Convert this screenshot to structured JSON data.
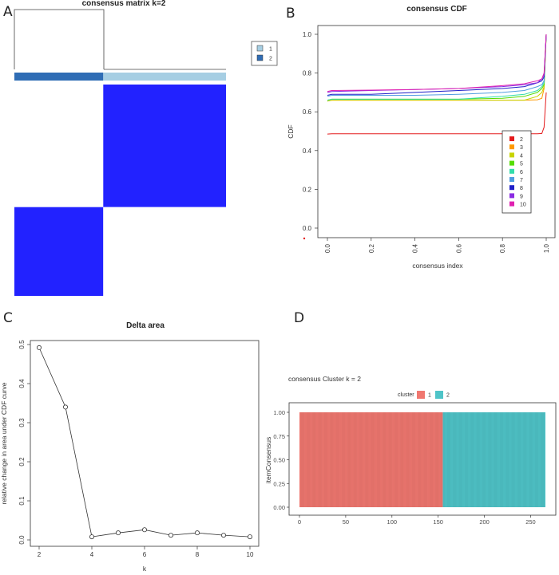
{
  "panels": {
    "a": "A",
    "b": "B",
    "c": "C",
    "d": "D"
  },
  "chart_data": [
    {
      "type": "heatmap",
      "title": "consensus matrix k=2",
      "legend": [
        "1",
        "2"
      ],
      "legend_colors": [
        "#a6cee3",
        "#2f6db5"
      ],
      "matrix_colors": [
        "#ffffff",
        "#2222ff"
      ],
      "cluster_split_fraction": 0.42,
      "blocks": [
        [
          0,
          1
        ],
        [
          1,
          0
        ]
      ]
    },
    {
      "type": "line",
      "title": "consensus CDF",
      "xlabel": "consensus index",
      "ylabel": "CDF",
      "xlim": [
        0,
        1
      ],
      "ylim": [
        0,
        1
      ],
      "xticks": [
        "0.0",
        "0.2",
        "0.4",
        "0.6",
        "0.8",
        "1.0"
      ],
      "yticks": [
        "0.0",
        "0.2",
        "0.4",
        "0.6",
        "0.8",
        "1.0"
      ],
      "legend_position": "bottom-right",
      "x": [
        0.0,
        0.02,
        0.2,
        0.4,
        0.6,
        0.8,
        0.9,
        0.96,
        0.98,
        0.99,
        1.0
      ],
      "series": [
        {
          "name": "2",
          "color": "#e41a1c",
          "values": [
            0.485,
            0.487,
            0.487,
            0.487,
            0.487,
            0.487,
            0.487,
            0.487,
            0.488,
            0.52,
            0.7
          ]
        },
        {
          "name": "3",
          "color": "#ff9900",
          "values": [
            0.655,
            0.66,
            0.66,
            0.66,
            0.66,
            0.66,
            0.66,
            0.662,
            0.67,
            0.72,
            1.0
          ]
        },
        {
          "name": "4",
          "color": "#c8d400",
          "values": [
            0.655,
            0.66,
            0.66,
            0.66,
            0.66,
            0.66,
            0.66,
            0.68,
            0.7,
            0.73,
            1.0
          ]
        },
        {
          "name": "5",
          "color": "#55dd00",
          "values": [
            0.66,
            0.665,
            0.665,
            0.665,
            0.665,
            0.67,
            0.68,
            0.7,
            0.72,
            0.74,
            1.0
          ]
        },
        {
          "name": "6",
          "color": "#33ddaa",
          "values": [
            0.66,
            0.665,
            0.665,
            0.665,
            0.665,
            0.68,
            0.69,
            0.71,
            0.73,
            0.75,
            1.0
          ]
        },
        {
          "name": "7",
          "color": "#4f9de0",
          "values": [
            0.68,
            0.685,
            0.685,
            0.685,
            0.69,
            0.7,
            0.71,
            0.73,
            0.74,
            0.76,
            1.0
          ]
        },
        {
          "name": "8",
          "color": "#1f1fc8",
          "values": [
            0.685,
            0.69,
            0.69,
            0.7,
            0.71,
            0.72,
            0.73,
            0.75,
            0.76,
            0.78,
            1.0
          ]
        },
        {
          "name": "9",
          "color": "#8a2be2",
          "values": [
            0.7,
            0.705,
            0.71,
            0.715,
            0.72,
            0.73,
            0.74,
            0.75,
            0.77,
            0.79,
            1.0
          ]
        },
        {
          "name": "10",
          "color": "#e020b0",
          "values": [
            0.705,
            0.71,
            0.712,
            0.715,
            0.72,
            0.735,
            0.745,
            0.76,
            0.77,
            0.8,
            1.0
          ]
        }
      ]
    },
    {
      "type": "scatter",
      "title": "Delta area",
      "xlabel": "k",
      "ylabel": "relative change in area under CDF curve",
      "xlim": [
        2,
        10
      ],
      "ylim": [
        0,
        0.5
      ],
      "xticks": [
        "2",
        "4",
        "6",
        "8",
        "10"
      ],
      "yticks": [
        "0.0",
        "0.1",
        "0.2",
        "0.3",
        "0.4",
        "0.5"
      ],
      "x": [
        2,
        3,
        4,
        5,
        6,
        7,
        8,
        9,
        10
      ],
      "values": [
        0.492,
        0.34,
        0.008,
        0.018,
        0.026,
        0.012,
        0.018,
        0.012,
        0.008
      ]
    },
    {
      "type": "bar",
      "title": "consensus Cluster k = 2",
      "xlabel": "",
      "ylabel": "itemConsensus",
      "legend_title": "cluster",
      "legend_position": "top",
      "xlim": [
        0,
        266
      ],
      "ylim": [
        0,
        1
      ],
      "xticks": [
        "0",
        "50",
        "100",
        "150",
        "200",
        "250"
      ],
      "yticks": [
        "0.00",
        "0.25",
        "0.50",
        "0.75",
        "1.00"
      ],
      "series": [
        {
          "name": "1",
          "color": "#f07870",
          "x_range": [
            1,
            155
          ],
          "value": 1.0
        },
        {
          "name": "2",
          "color": "#4fc4c8",
          "x_range": [
            156,
            266
          ],
          "value": 1.0
        }
      ]
    }
  ]
}
